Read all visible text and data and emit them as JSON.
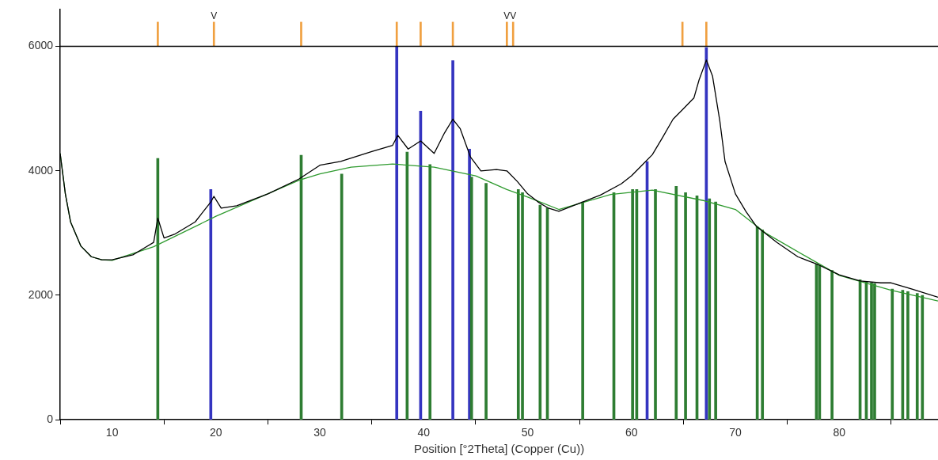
{
  "chart_data": {
    "type": "line",
    "xlabel": "Position [°2Theta] (Copper (Cu))",
    "xlim": [
      5,
      89.5
    ],
    "ylim": [
      0,
      6600
    ],
    "xticks": [
      10,
      20,
      30,
      40,
      50,
      60,
      70,
      80
    ],
    "yticks": [
      0,
      2000,
      4000,
      6000
    ],
    "grid": false,
    "legend": false,
    "marker": "none",
    "series": [
      {
        "type": "bar",
        "color": "#2e7d32",
        "x": [
          14.4,
          28.2,
          32.1,
          38.4,
          40.6,
          44.6,
          46.0,
          49.1,
          49.5,
          51.2,
          51.9,
          55.3,
          58.3,
          60.1,
          60.5,
          62.3,
          64.3,
          65.2,
          66.3,
          67.5,
          68.1,
          72.1,
          72.6,
          77.8,
          78.1,
          79.3,
          82.0,
          82.6,
          83.1,
          83.4,
          85.1,
          86.1,
          86.6,
          87.5,
          88.0
        ],
        "values": [
          4200,
          4250,
          3950,
          4300,
          4100,
          3900,
          3800,
          3700,
          3650,
          3450,
          3400,
          3500,
          3650,
          3700,
          3700,
          3700,
          3750,
          3650,
          3600,
          3550,
          3500,
          3100,
          3050,
          2500,
          2480,
          2400,
          2250,
          2220,
          2200,
          2190,
          2100,
          2080,
          2060,
          2030,
          2000
        ]
      },
      {
        "type": "bar",
        "color": "#3434c0",
        "x": [
          19.5,
          37.4,
          39.7,
          42.8,
          44.4,
          61.5,
          67.2
        ],
        "values": [
          3700,
          6000,
          4960,
          5770,
          4350,
          4150,
          5980
        ]
      },
      {
        "type": "bar",
        "color": "#f0a040",
        "x": [
          14.4,
          19.8,
          28.2,
          37.4,
          39.7,
          42.8,
          48.0,
          48.6,
          64.9,
          67.2
        ],
        "base": [
          6000,
          6000,
          6000,
          6000,
          6000,
          6000,
          6000,
          6000,
          6000,
          6000
        ],
        "values": [
          390,
          390,
          390,
          390,
          390,
          390,
          390,
          390,
          390,
          390
        ]
      },
      {
        "color": "#000000",
        "x": [
          5,
          5.5,
          6,
          7,
          8,
          9,
          10,
          12,
          13,
          14,
          14.4,
          15,
          16,
          18,
          19.5,
          19.8,
          20.5,
          22,
          25,
          28,
          30,
          32,
          35,
          37,
          37.5,
          38.5,
          39.7,
          41,
          42,
          42.8,
          43.5,
          44.5,
          45.5,
          47,
          48,
          49,
          50,
          51,
          52,
          53,
          55,
          57,
          59,
          60,
          61,
          62,
          63,
          64,
          65,
          66,
          66.5,
          67.2,
          67.8,
          68.5,
          69,
          70,
          71,
          72,
          74,
          76,
          78,
          80,
          82,
          84,
          85,
          87,
          89.5
        ],
        "values": [
          4280,
          3630,
          3180,
          2790,
          2620,
          2570,
          2570,
          2650,
          2750,
          2850,
          3240,
          2920,
          2980,
          3180,
          3500,
          3590,
          3400,
          3440,
          3630,
          3870,
          4090,
          4150,
          4310,
          4410,
          4570,
          4350,
          4480,
          4280,
          4610,
          4830,
          4680,
          4220,
          4000,
          4020,
          4000,
          3830,
          3630,
          3500,
          3400,
          3350,
          3480,
          3610,
          3790,
          3920,
          4090,
          4260,
          4540,
          4830,
          5000,
          5170,
          5460,
          5780,
          5520,
          4800,
          4150,
          3630,
          3350,
          3110,
          2850,
          2620,
          2490,
          2330,
          2230,
          2200,
          2200,
          2100,
          1970
        ]
      },
      {
        "color": "#2e9a2e",
        "x": [
          5,
          5.5,
          6,
          7,
          8,
          9,
          10,
          14,
          20,
          28,
          30,
          33,
          37,
          41,
          45,
          48,
          50,
          53,
          58,
          62,
          67,
          70,
          73,
          78,
          80,
          85,
          89.5
        ],
        "values": [
          4280,
          3630,
          3180,
          2790,
          2620,
          2570,
          2560,
          2780,
          3270,
          3850,
          3950,
          4060,
          4110,
          4060,
          3920,
          3700,
          3580,
          3380,
          3620,
          3690,
          3520,
          3380,
          2990,
          2510,
          2320,
          2080,
          1910
        ]
      }
    ],
    "ref_lines": [
      {
        "axis": "y",
        "value": 6000,
        "color": "#000000"
      }
    ],
    "annotations": [
      {
        "text": "V",
        "x": 19.8,
        "y": 6390
      },
      {
        "text": "V",
        "x": 48.0,
        "y": 6390
      },
      {
        "text": "V",
        "x": 48.6,
        "y": 6390
      }
    ]
  }
}
